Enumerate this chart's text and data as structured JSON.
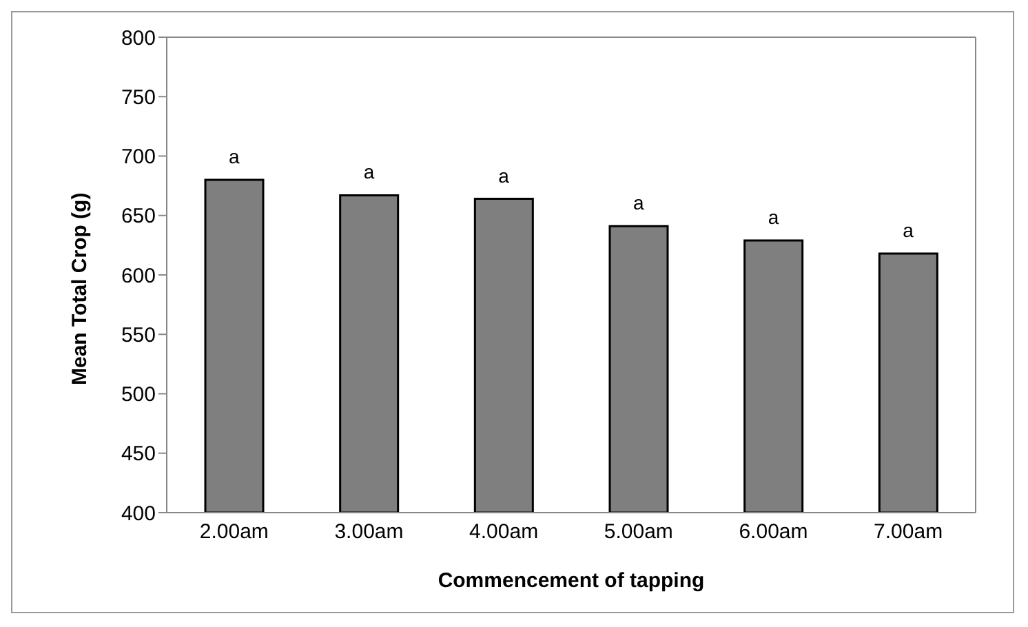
{
  "chart_data": {
    "type": "bar",
    "xlabel": "Commencement of tapping",
    "ylabel": "Mean Total Crop (g)",
    "categories": [
      "2.00am",
      "3.00am",
      "4.00am",
      "5.00am",
      "6.00am",
      "7.00am"
    ],
    "values": [
      680,
      667,
      664,
      641,
      629,
      618
    ],
    "color": "#7f7f7f",
    "ylim": [
      400,
      800
    ],
    "yticks": [
      400,
      450,
      500,
      550,
      600,
      650,
      700,
      750,
      800
    ],
    "grid": false,
    "annotations": [
      {
        "text": "a",
        "x": "2.00am",
        "y": 680
      },
      {
        "text": "a",
        "x": "3.00am",
        "y": 667
      },
      {
        "text": "a",
        "x": "4.00am",
        "y": 664
      },
      {
        "text": "a",
        "x": "5.00am",
        "y": 641
      },
      {
        "text": "a",
        "x": "6.00am",
        "y": 629
      },
      {
        "text": "a",
        "x": "7.00am",
        "y": 618
      }
    ]
  }
}
